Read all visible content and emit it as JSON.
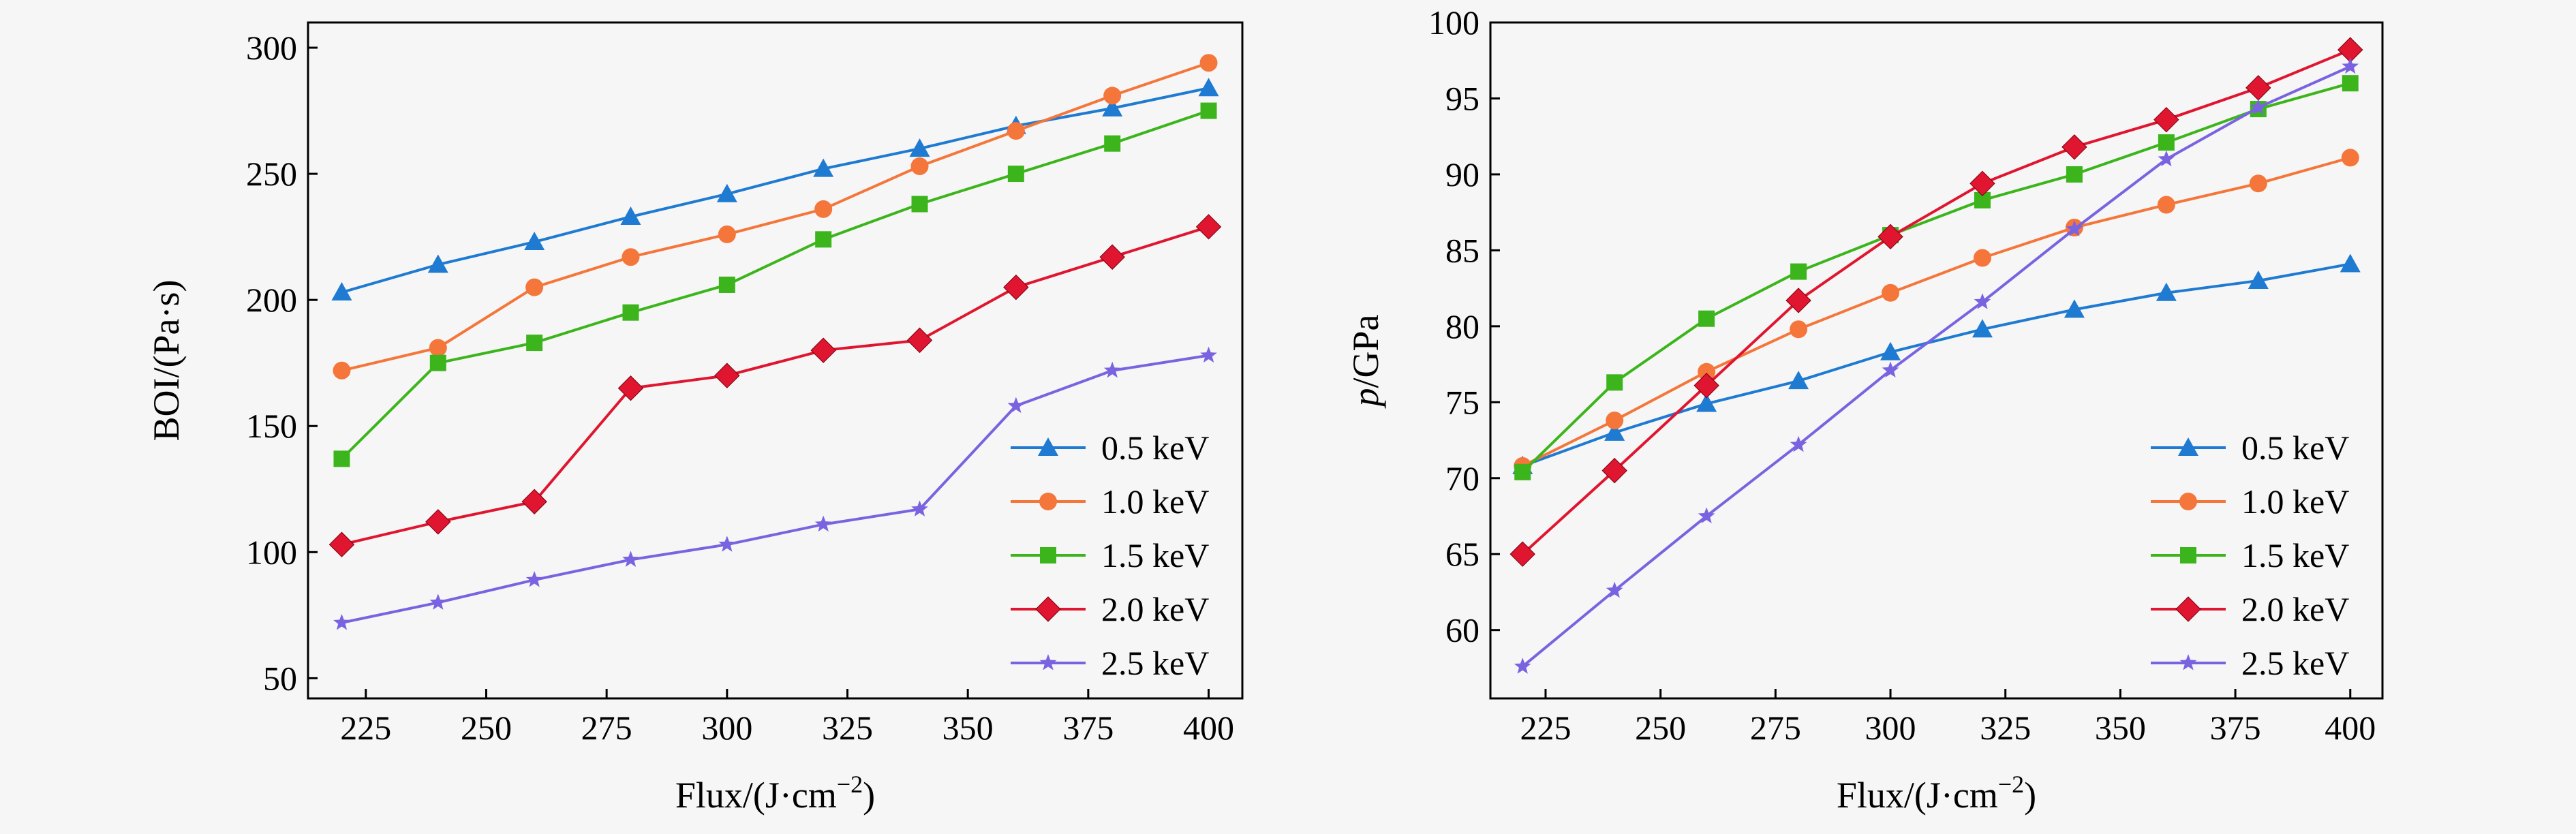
{
  "chart_data": [
    {
      "type": "line",
      "xlabel": "Flux/(J·cm",
      "xlabel_sup": "−2",
      "xlabel_end": ")",
      "ylabel": "BOI/(Pa·s)",
      "ylabel_italic": "",
      "x": [
        220,
        240,
        260,
        280,
        300,
        320,
        340,
        360,
        380,
        400
      ],
      "xticks": [
        "225",
        "250",
        "275",
        "300",
        "325",
        "350",
        "375",
        "400"
      ],
      "yticks": [
        "50",
        "100",
        "150",
        "200",
        "250",
        "300"
      ],
      "xlim": [
        213,
        407
      ],
      "ylim": [
        42,
        310
      ],
      "legend_position": "lower-right",
      "series": [
        {
          "name": "0.5 keV",
          "color": "#1f7ad1",
          "marker": "triangle",
          "values": [
            203,
            214,
            223,
            233,
            242,
            252,
            260,
            269,
            276,
            284
          ]
        },
        {
          "name": "1.0 keV",
          "color": "#f5763a",
          "marker": "circle",
          "values": [
            172,
            181,
            205,
            217,
            226,
            236,
            253,
            267,
            281,
            294
          ]
        },
        {
          "name": "1.5 keV",
          "color": "#3cb51c",
          "marker": "square",
          "values": [
            137,
            175,
            183,
            195,
            206,
            224,
            238,
            250,
            262,
            275
          ]
        },
        {
          "name": "2.0 keV",
          "color": "#e0152f",
          "marker": "diamond",
          "values": [
            103,
            112,
            120,
            165,
            170,
            180,
            184,
            205,
            217,
            229
          ]
        },
        {
          "name": "2.5 keV",
          "color": "#7a63e0",
          "marker": "star",
          "values": [
            72,
            80,
            89,
            97,
            103,
            111,
            117,
            158,
            172,
            178
          ]
        }
      ]
    },
    {
      "type": "line",
      "xlabel": "Flux/(J·cm",
      "xlabel_sup": "−2",
      "xlabel_end": ")",
      "ylabel": "/GPa",
      "ylabel_italic": "p",
      "x": [
        220,
        240,
        260,
        280,
        300,
        320,
        340,
        360,
        380,
        400
      ],
      "xticks": [
        "225",
        "250",
        "275",
        "300",
        "325",
        "350",
        "375",
        "400"
      ],
      "yticks": [
        "60",
        "65",
        "70",
        "75",
        "80",
        "85",
        "90",
        "95",
        "100"
      ],
      "xlim": [
        213,
        407
      ],
      "ylim": [
        55.5,
        100
      ],
      "legend_position": "lower-right",
      "series": [
        {
          "name": "0.5 keV",
          "color": "#1f7ad1",
          "marker": "triangle",
          "values": [
            70.8,
            73.0,
            74.9,
            76.4,
            78.3,
            79.8,
            81.1,
            82.2,
            83.0,
            84.1
          ]
        },
        {
          "name": "1.0 keV",
          "color": "#f5763a",
          "marker": "circle",
          "values": [
            70.8,
            73.8,
            77.0,
            79.8,
            82.2,
            84.5,
            86.5,
            88.0,
            89.4,
            91.1
          ]
        },
        {
          "name": "1.5 keV",
          "color": "#3cb51c",
          "marker": "square",
          "values": [
            70.4,
            76.3,
            80.5,
            83.6,
            86.0,
            88.3,
            90.0,
            92.1,
            94.3,
            96.0
          ]
        },
        {
          "name": "2.0 keV",
          "color": "#e0152f",
          "marker": "diamond",
          "values": [
            65.0,
            70.5,
            76.1,
            81.7,
            85.9,
            89.4,
            91.8,
            93.6,
            95.7,
            98.2
          ]
        },
        {
          "name": "2.5 keV",
          "color": "#7a63e0",
          "marker": "star",
          "values": [
            57.6,
            62.6,
            67.5,
            72.2,
            77.1,
            81.6,
            86.4,
            91.0,
            94.4,
            97.1
          ]
        }
      ]
    }
  ]
}
